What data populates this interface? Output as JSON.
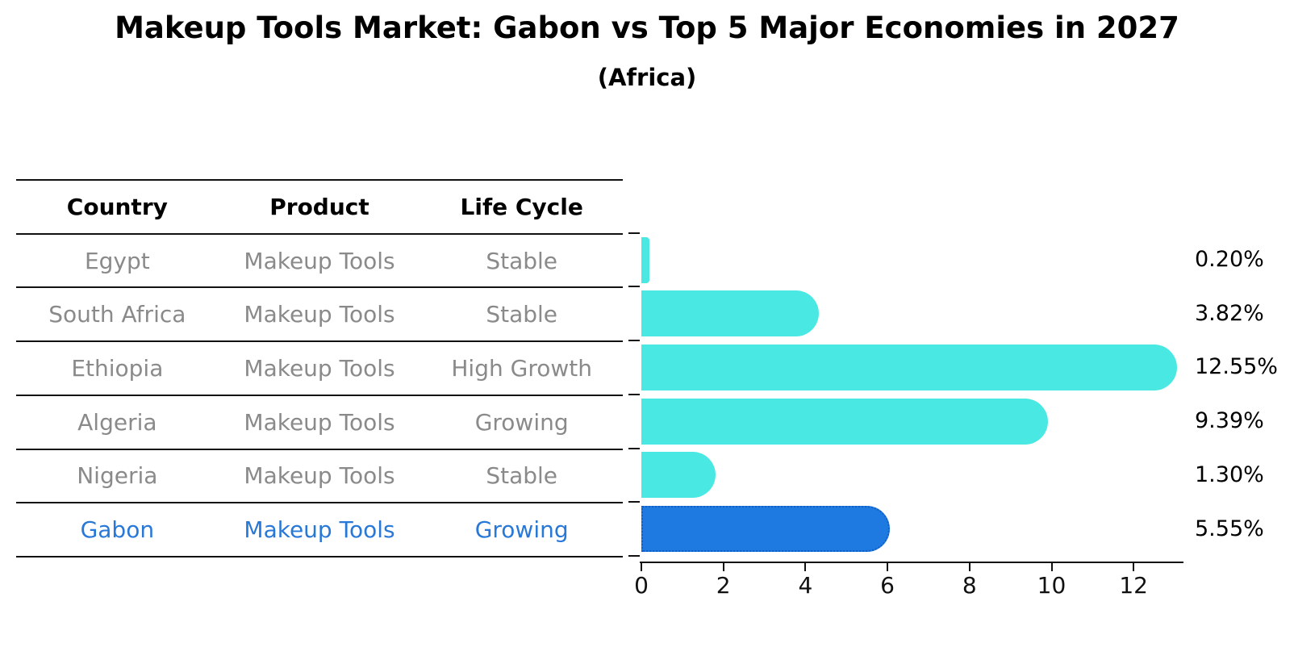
{
  "title": "Makeup Tools Market: Gabon vs Top 5 Major Economies in 2027",
  "subtitle": "(Africa)",
  "table": {
    "headers": [
      "Country",
      "Product",
      "Life Cycle"
    ],
    "rows": [
      {
        "country": "Egypt",
        "product": "Makeup Tools",
        "life_cycle": "Stable",
        "highlighted": false
      },
      {
        "country": "South Africa",
        "product": "Makeup Tools",
        "life_cycle": "Stable",
        "highlighted": false
      },
      {
        "country": "Ethiopia",
        "product": "Makeup Tools",
        "life_cycle": "High Growth",
        "highlighted": false
      },
      {
        "country": "Algeria",
        "product": "Makeup Tools",
        "life_cycle": "Growing",
        "highlighted": false
      },
      {
        "country": "Nigeria",
        "product": "Makeup Tools",
        "life_cycle": "Stable",
        "highlighted": false
      },
      {
        "country": "Gabon",
        "product": "Makeup Tools",
        "life_cycle": "Growing",
        "highlighted": true
      }
    ]
  },
  "chart_data": {
    "type": "bar",
    "orientation": "horizontal",
    "categories": [
      "Egypt",
      "South Africa",
      "Ethiopia",
      "Algeria",
      "Nigeria",
      "Gabon"
    ],
    "values": [
      0.2,
      3.82,
      12.55,
      9.39,
      1.3,
      5.55
    ],
    "value_labels": [
      "0.20%",
      "3.82%",
      "12.55%",
      "9.39%",
      "1.30%",
      "5.55%"
    ],
    "x_ticks": [
      0,
      2,
      4,
      6,
      8,
      10,
      12
    ],
    "xlim": [
      0,
      13.2
    ],
    "grid": false,
    "legend": "none",
    "highlight_index": 5,
    "bar_color": "#4AE8E3",
    "highlight_bar_color": "#1E79E0",
    "highlight_border_color": "#0F5FC6",
    "highlight_text_color": "#2878D8",
    "muted_text_color": "#8A8A8A"
  }
}
